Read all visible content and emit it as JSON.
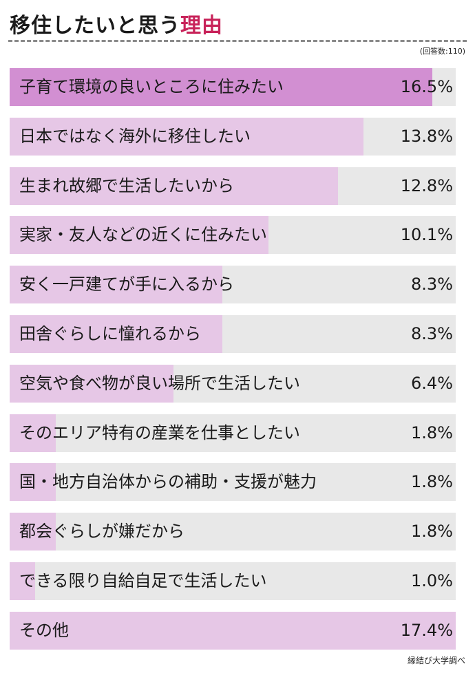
{
  "header": {
    "title_main": "移住したいと思う",
    "title_accent": "理由",
    "respondents": "(回答数:110)",
    "source": "縁結び大学調べ"
  },
  "colors": {
    "accent": "#c8235a",
    "top_bar": "#d28fd2",
    "bar": "#e6c7e6",
    "track": "#e8e8e8"
  },
  "chart_data": {
    "type": "bar",
    "orientation": "horizontal",
    "unit": "%",
    "xlim": [
      0,
      17.4
    ],
    "categories": [
      "子育て環境の良いところに住みたい",
      "日本ではなく海外に移住したい",
      "生まれ故郷で生活したいから",
      "実家・友人などの近くに住みたい",
      "安く一戸建てが手に入るから",
      "田舎ぐらしに憧れるから",
      "空気や食べ物が良い場所で生活したい",
      "そのエリア特有の産業を仕事としたい",
      "国・地方自治体からの補助・支援が魅力",
      "都会ぐらしが嫌だから",
      "できる限り自給自足で生活したい",
      "その他"
    ],
    "values": [
      16.5,
      13.8,
      12.8,
      10.1,
      8.3,
      8.3,
      6.4,
      1.8,
      1.8,
      1.8,
      1.0,
      17.4
    ],
    "value_labels": [
      "16.5%",
      "13.8%",
      "12.8%",
      "10.1%",
      "8.3%",
      "8.3%",
      "6.4%",
      "1.8%",
      "1.8%",
      "1.8%",
      "1.0%",
      "17.4%"
    ],
    "highlight_index": 0
  }
}
